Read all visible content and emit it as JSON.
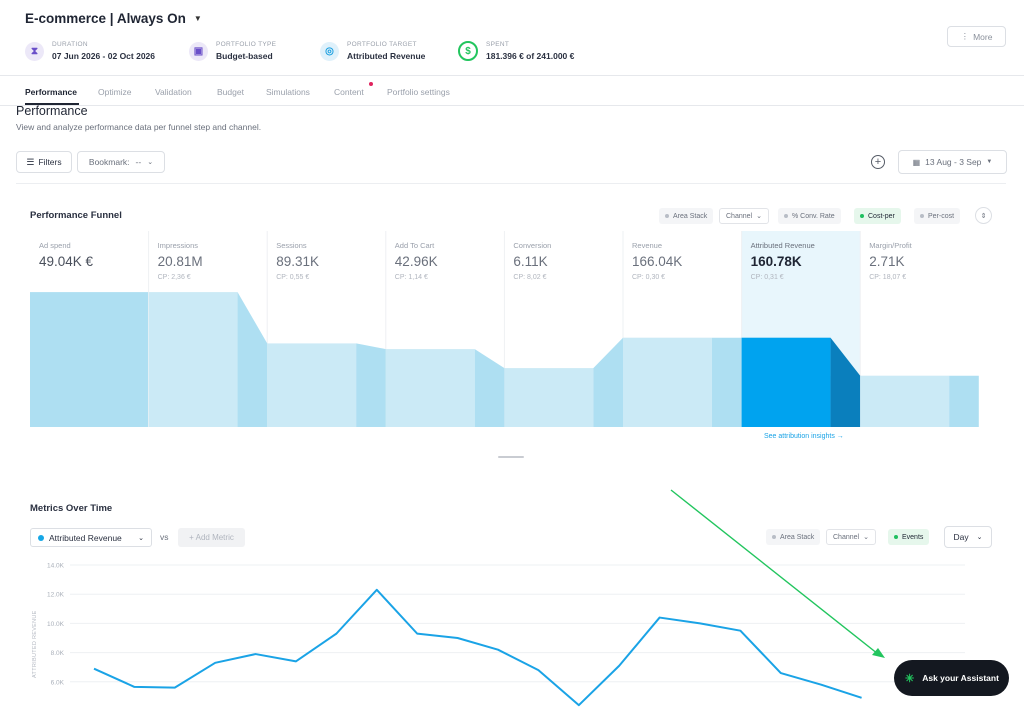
{
  "header": {
    "title": "E-commerce | Always On",
    "stats": [
      {
        "label": "DURATION",
        "value": "07 Jun 2026 - 02 Oct 2026",
        "icon": "hourglass-icon"
      },
      {
        "label": "PORTFOLIO TYPE",
        "value": "Budget-based",
        "icon": "wallet-icon"
      },
      {
        "label": "PORTFOLIO TARGET",
        "value": "Attributed Revenue",
        "icon": "target-icon"
      },
      {
        "label": "SPENT",
        "value": "181.396 € of 241.000 €",
        "icon": "dollar-progress-icon"
      }
    ],
    "more_label": "More"
  },
  "tabs": [
    {
      "label": "Performance",
      "active": true
    },
    {
      "label": "Optimize"
    },
    {
      "label": "Validation"
    },
    {
      "label": "Budget"
    },
    {
      "label": "Simulations"
    },
    {
      "label": "Content"
    },
    {
      "label": "Portfolio settings"
    }
  ],
  "page": {
    "title": "Performance",
    "subtitle": "View and analyze performance data per funnel step and channel."
  },
  "toolbar": {
    "filters_label": "Filters",
    "bookmark_label": "Bookmark:",
    "bookmark_value": "--",
    "date_range": "13 Aug - 3 Sep"
  },
  "funnel": {
    "title": "Performance Funnel",
    "chips": {
      "area_stack": "Area Stack",
      "channel": "Channel",
      "conv_rate": "% Conv. Rate",
      "cost_per": "Cost-per",
      "per_cost": "Per-cost"
    },
    "attribution_link": "See attribution insights →",
    "steps": [
      {
        "label": "Ad spend",
        "value": "49.04K €",
        "cp": "",
        "level": 0.71
      },
      {
        "label": "Impressions",
        "value": "20.81M",
        "cp": "CP: 2,36 €",
        "level": 0.71
      },
      {
        "label": "Sessions",
        "value": "89.31K",
        "cp": "CP: 0,55 €",
        "level": 0.44
      },
      {
        "label": "Add To Cart",
        "value": "42.96K",
        "cp": "CP: 1,14 €",
        "level": 0.41
      },
      {
        "label": "Conversion",
        "value": "6.11K",
        "cp": "CP: 8,02 €",
        "level": 0.31
      },
      {
        "label": "Revenue",
        "value": "166.04K",
        "cp": "CP: 0,30 €",
        "level": 0.47
      },
      {
        "label": "Attributed Revenue",
        "value": "160.78K",
        "cp": "CP: 0,31 €",
        "level": 0.47,
        "highlight": true
      },
      {
        "label": "Margin/Profit",
        "value": "2.71K",
        "cp": "CP: 18,07 €",
        "level": 0.27
      }
    ]
  },
  "metrics": {
    "title": "Metrics Over Time",
    "metric": "Attributed Revenue",
    "vs": "vs",
    "add_metric": "+ Add Metric",
    "chips": {
      "area_stack": "Area Stack",
      "channel": "Channel",
      "events": "Events"
    },
    "granularity": "Day"
  },
  "chart_data": {
    "type": "line",
    "ylabel": "ATTRIBUTED REVENUE",
    "ylim": [
      4000,
      14000
    ],
    "y_ticks": [
      "14.0K",
      "12.0K",
      "10.0K",
      "8.0K",
      "6.0K"
    ],
    "series": [
      {
        "name": "Attributed Revenue",
        "color": "#1aa3e6",
        "values": [
          6900,
          5650,
          5600,
          7300,
          7900,
          7400,
          9300,
          12300,
          9300,
          9000,
          8200,
          6800,
          4400,
          7100,
          10400,
          10000,
          9500,
          6600,
          5800,
          4900
        ]
      }
    ],
    "grid": true
  },
  "assistant": {
    "label": "Ask your Assistant"
  },
  "colors": {
    "accent": "#16a7e6",
    "highlight": "#00a3ef",
    "funnel_light": "#cbeaf6",
    "green": "#22c55e"
  }
}
